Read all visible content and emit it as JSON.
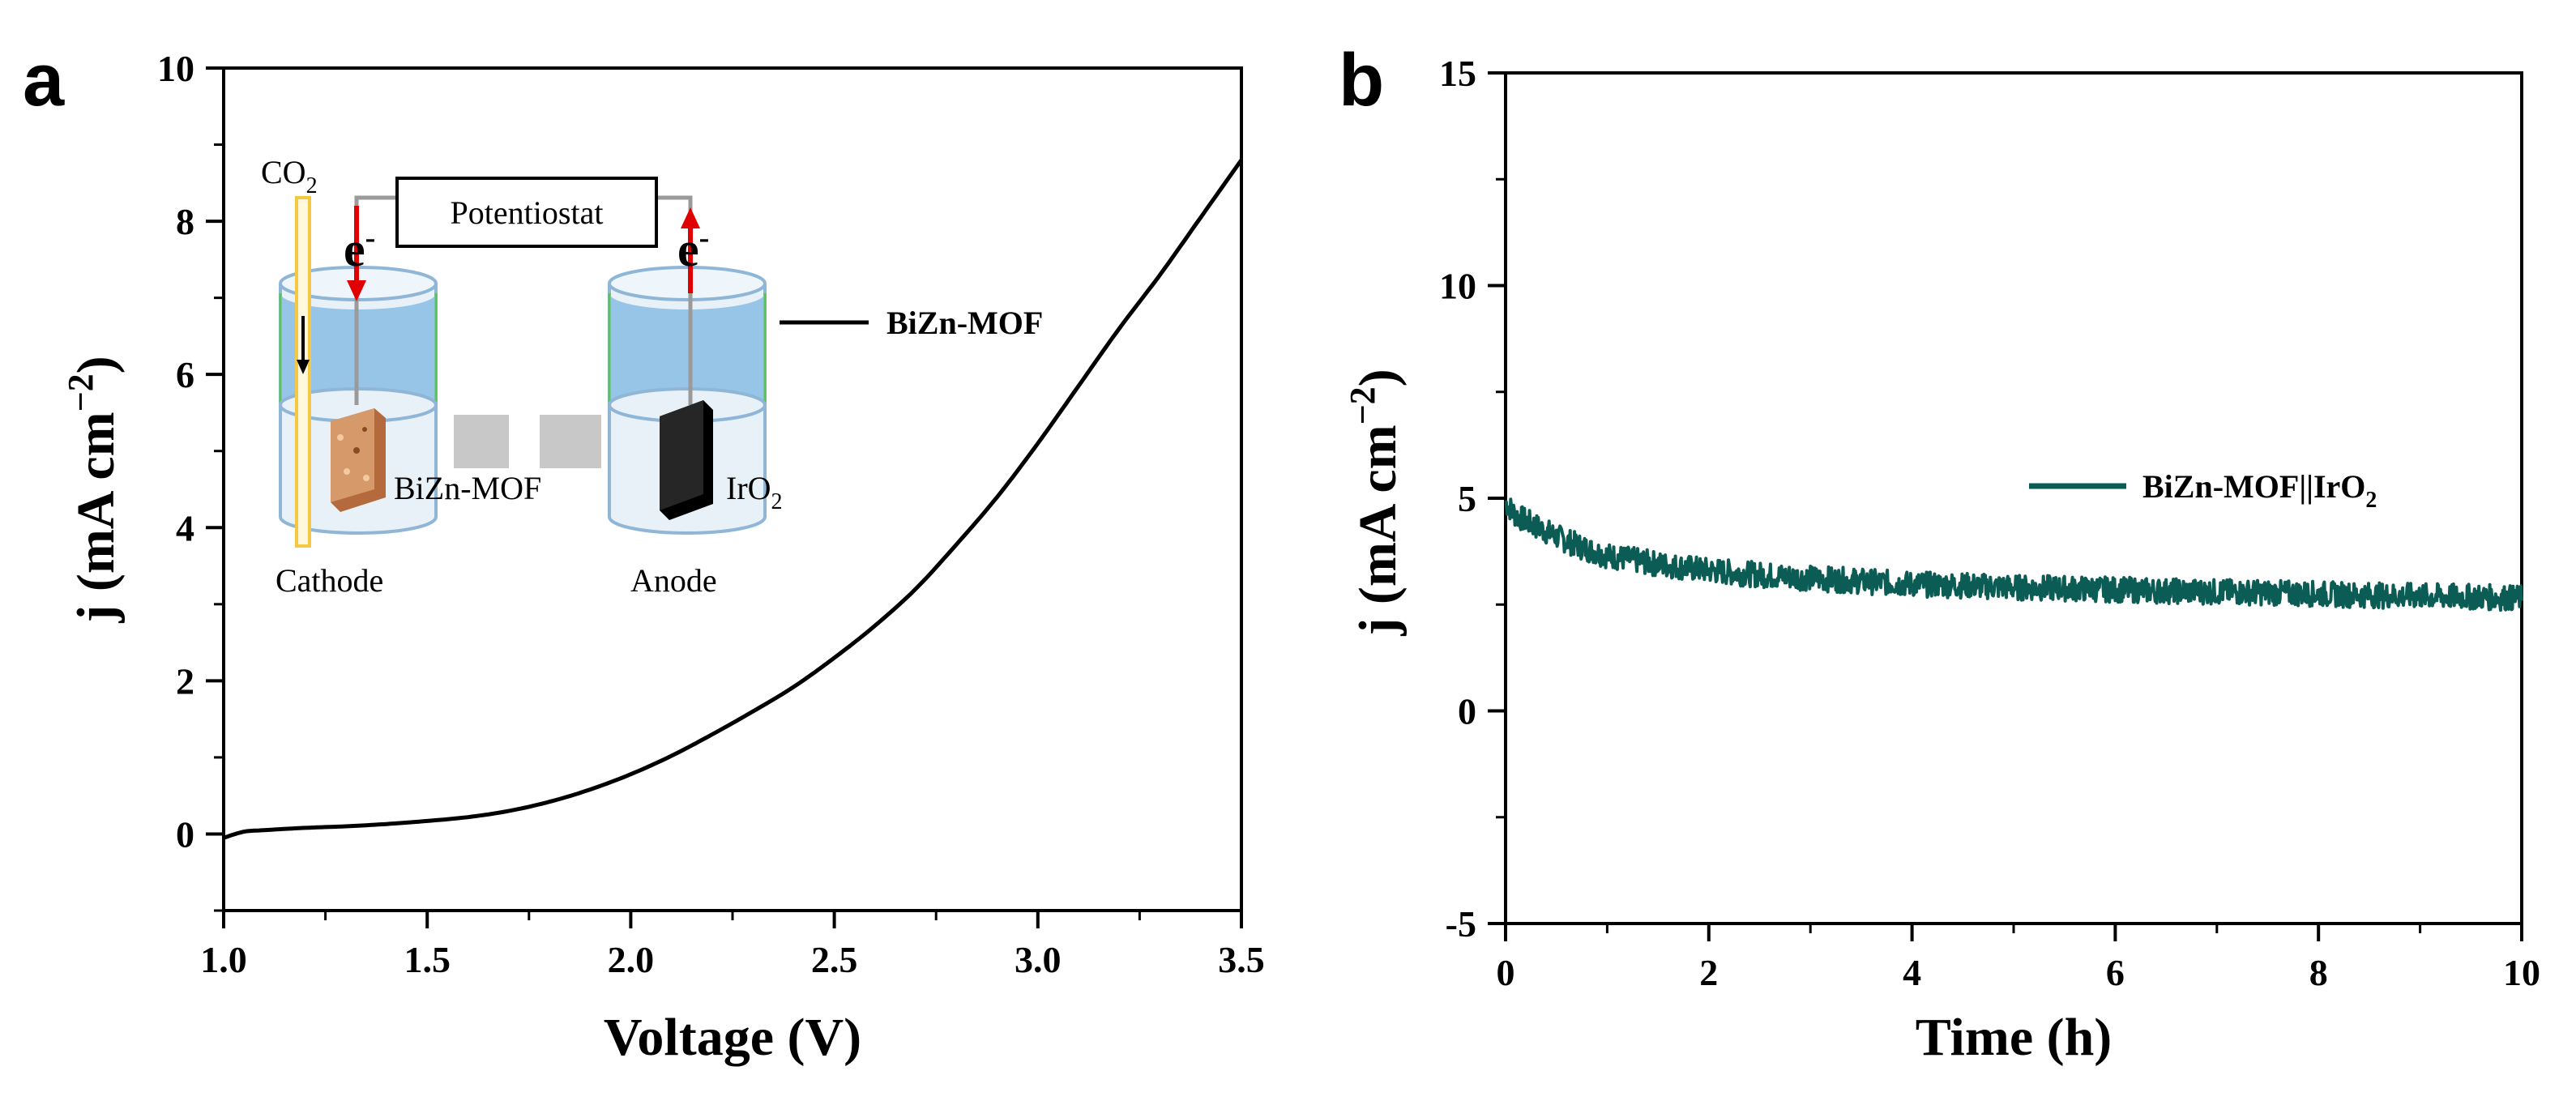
{
  "chart_data": [
    {
      "panel": "a",
      "type": "line",
      "xlabel": "Voltage (V)",
      "ylabel": "j (mA cm",
      "ylabel_sup": "−2",
      "ylabel_close": ")",
      "xlim": [
        1.0,
        3.5
      ],
      "ylim": [
        -1,
        10
      ],
      "xticks": [
        1.0,
        1.5,
        2.0,
        2.5,
        3.0,
        3.5
      ],
      "xtick_labels": [
        "1.0",
        "1.5",
        "2.0",
        "2.5",
        "3.0",
        "3.5"
      ],
      "yticks": [
        0,
        2,
        4,
        6,
        8,
        10
      ],
      "ytick_labels": [
        "0",
        "2",
        "4",
        "6",
        "8",
        "10"
      ],
      "grid": false,
      "legend_position": "right-middle",
      "series": [
        {
          "name": "BiZn-MOF",
          "color": "#000000",
          "x": [
            1.0,
            1.05,
            1.1,
            1.2,
            1.3,
            1.4,
            1.5,
            1.6,
            1.7,
            1.8,
            1.9,
            2.0,
            2.1,
            2.2,
            2.3,
            2.4,
            2.5,
            2.6,
            2.7,
            2.8,
            2.9,
            3.0,
            3.1,
            3.2,
            3.3,
            3.4,
            3.5
          ],
          "y": [
            -0.05,
            0.03,
            0.05,
            0.08,
            0.1,
            0.13,
            0.17,
            0.22,
            0.3,
            0.42,
            0.58,
            0.78,
            1.02,
            1.3,
            1.6,
            1.92,
            2.3,
            2.72,
            3.2,
            3.78,
            4.4,
            5.1,
            5.85,
            6.6,
            7.3,
            8.05,
            8.8
          ]
        }
      ],
      "inset": {
        "gas_label": "CO",
        "gas_sub": "2",
        "potentiostat_label": "Potentiostat",
        "cathode_electron": "e",
        "cathode_electron_sup": "-",
        "anode_electron": "e",
        "anode_electron_sup": "-",
        "cathode_material": "BiZn-MOF",
        "anode_material": "IrO",
        "anode_material_sub": "2",
        "cathode_label": "Cathode",
        "anode_label": "Anode"
      }
    },
    {
      "panel": "b",
      "type": "line",
      "xlabel": "Time (h)",
      "ylabel": "j (mA cm",
      "ylabel_sup": "−2",
      "ylabel_close": ")",
      "xlim": [
        0,
        10
      ],
      "ylim": [
        -5,
        15
      ],
      "xticks": [
        0,
        2,
        4,
        6,
        8,
        10
      ],
      "xtick_labels": [
        "0",
        "2",
        "4",
        "6",
        "8",
        "10"
      ],
      "yticks": [
        -5,
        0,
        5,
        10,
        15
      ],
      "ytick_labels": [
        "-5",
        "0",
        "5",
        "10",
        "15"
      ],
      "grid": false,
      "legend_position": "right-middle",
      "series": [
        {
          "name": "BiZn-MOF||IrO",
          "name_sub": "2",
          "color": "#0b5c54",
          "x": [
            0,
            0.1,
            0.25,
            0.5,
            0.75,
            1.0,
            1.5,
            2.0,
            2.5,
            3.0,
            3.5,
            4.0,
            4.5,
            5.0,
            5.5,
            6.0,
            6.5,
            7.0,
            7.5,
            8.0,
            8.5,
            9.0,
            9.5,
            10.0
          ],
          "y": [
            4.9,
            4.6,
            4.4,
            4.1,
            3.85,
            3.65,
            3.45,
            3.3,
            3.2,
            3.12,
            3.05,
            2.98,
            2.95,
            2.9,
            2.88,
            2.85,
            2.82,
            2.8,
            2.78,
            2.75,
            2.72,
            2.7,
            2.68,
            2.65
          ],
          "noise_amplitude": 0.3
        }
      ]
    }
  ],
  "colors": {
    "electrolyte": "#97c5e8",
    "cell_fill": "#e9f1f8",
    "cell_edge": "#8fb6d6",
    "membrane": "#c8c8c8",
    "arrow_red": "#e10000",
    "tube_yellow": "#f5c842",
    "cathode_block": "#c8845a",
    "anode_block": "#1a1a1a"
  },
  "icons": {
    "cathode_cell": "electrochemical-cell-icon",
    "anode_cell": "electrochemical-cell-icon",
    "potentiostat": "potentiostat-box-icon"
  }
}
